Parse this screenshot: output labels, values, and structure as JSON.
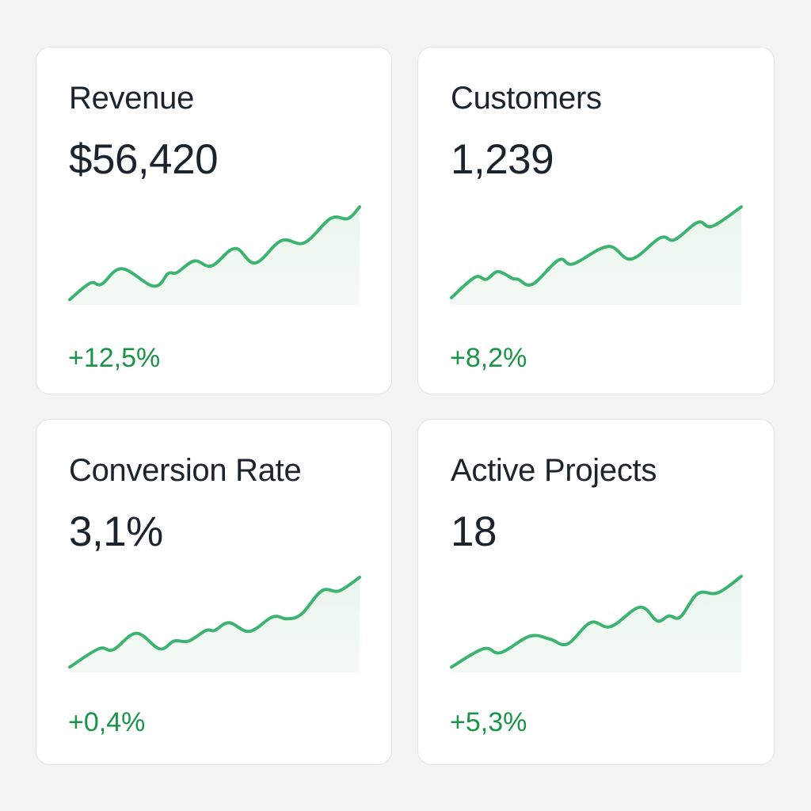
{
  "colors": {
    "background": "#f3f3f2",
    "card": "#ffffff",
    "text": "#1b232c",
    "positive": "#1b9447",
    "sparkline_stroke": "#3cb371",
    "sparkline_fill": "#e9f5ec"
  },
  "cards": [
    {
      "title": "Revenue",
      "value": "$56,420",
      "change": "+12,5%",
      "trend": "up"
    },
    {
      "title": "Customers",
      "value": "1,239",
      "change": "+8,2%",
      "trend": "up"
    },
    {
      "title": "Conversion Rate",
      "value": "3,1%",
      "change": "+0,4%",
      "trend": "up"
    },
    {
      "title": "Active Projects",
      "value": "18",
      "change": "+5,3%",
      "trend": "up"
    }
  ],
  "chart_data": [
    {
      "type": "area",
      "title": "Revenue",
      "xlabel": "",
      "ylabel": "",
      "grid": false,
      "ylim": [
        0,
        100
      ],
      "x": [
        0,
        0.07,
        0.11,
        0.18,
        0.29,
        0.34,
        0.37,
        0.43,
        0.49,
        0.57,
        0.64,
        0.73,
        0.81,
        0.9,
        0.96,
        1
      ],
      "values": [
        3,
        20,
        19,
        35,
        17,
        30,
        31,
        43,
        38,
        56,
        41,
        64,
        62,
        87,
        87,
        99
      ]
    },
    {
      "type": "area",
      "title": "Customers",
      "xlabel": "",
      "ylabel": "",
      "grid": false,
      "ylim": [
        0,
        100
      ],
      "x": [
        0,
        0.08,
        0.12,
        0.16,
        0.21,
        0.23,
        0.28,
        0.37,
        0.42,
        0.54,
        0.62,
        0.72,
        0.77,
        0.85,
        0.9,
        1
      ],
      "values": [
        5,
        26,
        24,
        32,
        25,
        24,
        19,
        44,
        40,
        58,
        45,
        67,
        65,
        83,
        79,
        99
      ]
    },
    {
      "type": "area",
      "title": "Conversion Rate",
      "xlabel": "",
      "ylabel": "",
      "grid": false,
      "ylim": [
        0,
        100
      ],
      "x": [
        0,
        0.1,
        0.15,
        0.23,
        0.31,
        0.36,
        0.41,
        0.47,
        0.5,
        0.55,
        0.62,
        0.7,
        0.75,
        0.8,
        0.87,
        0.93,
        1
      ],
      "values": [
        3,
        22,
        21,
        38,
        22,
        30,
        30,
        41,
        41,
        49,
        40,
        55,
        53,
        58,
        82,
        82,
        96
      ]
    },
    {
      "type": "area",
      "title": "Active Projects",
      "xlabel": "",
      "ylabel": "",
      "grid": false,
      "ylim": [
        0,
        100
      ],
      "x": [
        0,
        0.11,
        0.17,
        0.27,
        0.34,
        0.4,
        0.48,
        0.55,
        0.65,
        0.71,
        0.75,
        0.79,
        0.85,
        0.92,
        1
      ],
      "values": [
        3,
        22,
        18,
        35,
        32,
        27,
        49,
        45,
        65,
        51,
        56,
        55,
        79,
        80,
        97
      ]
    }
  ]
}
